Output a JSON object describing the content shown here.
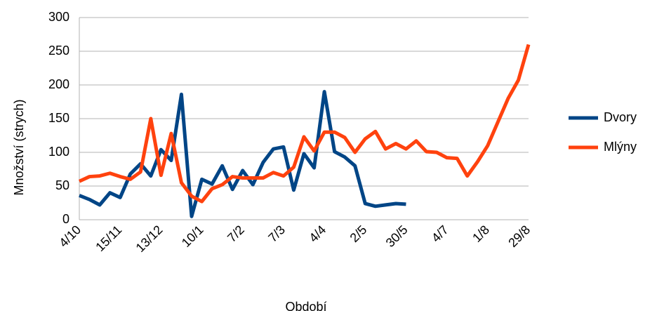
{
  "chart_data": {
    "type": "line",
    "x_label": "Období",
    "y_label": "Množství (strych)",
    "categories": [
      "4/10",
      null,
      null,
      null,
      "15/11",
      null,
      null,
      null,
      "13/12",
      null,
      null,
      null,
      "10/1",
      null,
      null,
      null,
      "7/2",
      null,
      null,
      null,
      "7/3",
      null,
      null,
      null,
      "4/4",
      null,
      null,
      null,
      "2/5",
      null,
      null,
      null,
      "30/5",
      null,
      null,
      null,
      "4/7",
      null,
      null,
      null,
      "1/8",
      null,
      null,
      null,
      "29/8"
    ],
    "series": [
      {
        "name": "Dvory",
        "color": "#004586",
        "values": [
          36,
          30,
          22,
          40,
          33,
          68,
          83,
          65,
          104,
          88,
          186,
          5,
          60,
          53,
          80,
          45,
          73,
          52,
          85,
          105,
          108,
          44,
          98,
          77,
          190,
          101,
          93,
          80,
          24,
          20,
          22,
          24,
          23,
          null,
          null,
          null,
          null,
          null,
          null,
          null,
          null,
          null,
          null,
          null,
          null
        ]
      },
      {
        "name": "Mlýny",
        "color": "#ff420e",
        "values": [
          57,
          64,
          65,
          69,
          64,
          60,
          71,
          150,
          66,
          128,
          55,
          35,
          27,
          46,
          52,
          64,
          62,
          62,
          62,
          70,
          65,
          78,
          123,
          102,
          130,
          130,
          122,
          100,
          120,
          131,
          105,
          113,
          105,
          117,
          101,
          100,
          92,
          91,
          65,
          86,
          110,
          145,
          180,
          207,
          260
        ]
      }
    ],
    "ylim": [
      0,
      300
    ],
    "yticks": [
      0,
      50,
      100,
      150,
      200,
      250,
      300
    ],
    "grid": true,
    "legend": "right"
  }
}
